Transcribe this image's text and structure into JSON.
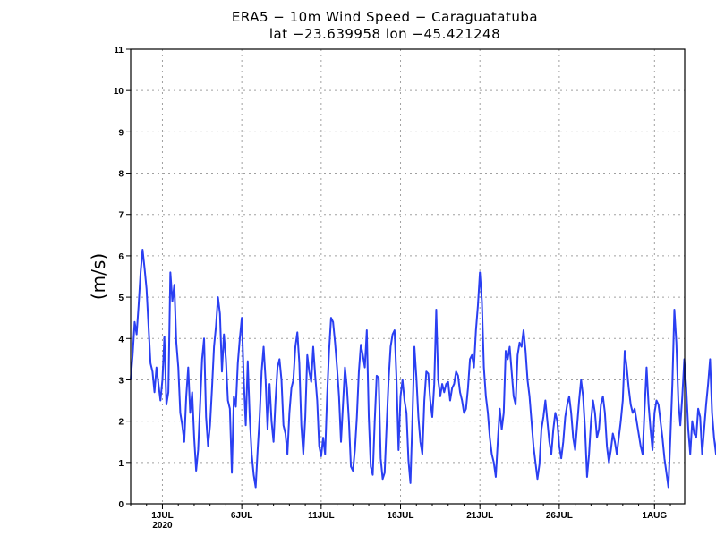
{
  "title_line1": "ERA5 − 10m Wind Speed − Caraguatatuba",
  "title_line2": "lat −23.639958 lon −45.421248",
  "colors": {
    "series": "#2a3ff2",
    "grid": "#a0a0a0",
    "axis": "#000000"
  },
  "chart_data": {
    "type": "line",
    "title": "ERA5 − 10m Wind Speed − Caraguatatuba",
    "subtitle": "lat −23.639958 lon −45.421248",
    "ylabel": "(m/s)",
    "xlabel": "",
    "ylim": [
      0,
      11
    ],
    "yticks": [
      0,
      1,
      2,
      3,
      4,
      5,
      6,
      7,
      8,
      9,
      10,
      11
    ],
    "xlim_days": [
      -2.0,
      32.9
    ],
    "xticks": [
      {
        "day": 0,
        "label": "1JUL",
        "sublabel": "2020"
      },
      {
        "day": 5,
        "label": "6JUL"
      },
      {
        "day": 10,
        "label": "11JUL"
      },
      {
        "day": 15,
        "label": "16JUL"
      },
      {
        "day": 20,
        "label": "21JUL"
      },
      {
        "day": 25,
        "label": "26JUL"
      },
      {
        "day": 31,
        "label": "1AUG"
      }
    ],
    "grid": true,
    "series": [
      {
        "name": "10m Wind Speed",
        "x_start_day": -2.0,
        "x_step_day": 0.125,
        "values": [
          3.0,
          3.6,
          4.4,
          4.1,
          4.8,
          5.6,
          6.15,
          5.7,
          5.2,
          4.3,
          3.4,
          3.2,
          2.7,
          3.3,
          2.9,
          2.5,
          3.0,
          4.05,
          2.4,
          2.7,
          5.6,
          4.9,
          5.3,
          3.9,
          3.3,
          2.2,
          1.9,
          1.5,
          2.6,
          3.3,
          2.2,
          2.7,
          1.6,
          0.8,
          1.3,
          2.4,
          3.5,
          4.0,
          2.1,
          1.4,
          1.9,
          2.8,
          3.8,
          4.3,
          5.0,
          4.6,
          3.2,
          4.1,
          3.5,
          2.5,
          2.3,
          0.75,
          2.6,
          2.35,
          3.4,
          4.0,
          4.5,
          3.0,
          1.9,
          3.45,
          2.1,
          1.2,
          0.7,
          0.4,
          1.3,
          2.1,
          3.2,
          3.8,
          3.0,
          1.8,
          2.9,
          2.0,
          1.5,
          2.5,
          3.3,
          3.5,
          3.0,
          1.9,
          1.7,
          1.2,
          2.2,
          2.8,
          3.0,
          3.8,
          4.15,
          3.4,
          1.9,
          1.2,
          2.1,
          3.6,
          3.2,
          2.95,
          3.8,
          3.1,
          2.5,
          1.4,
          1.15,
          1.6,
          1.2,
          2.6,
          3.7,
          4.5,
          4.4,
          3.9,
          3.3,
          2.6,
          1.5,
          2.4,
          3.3,
          2.8,
          2.0,
          0.9,
          0.8,
          1.3,
          2.1,
          3.2,
          3.85,
          3.6,
          3.3,
          4.2,
          2.1,
          0.9,
          0.7,
          2.0,
          3.1,
          3.05,
          1.1,
          0.6,
          0.75,
          1.9,
          3.0,
          3.8,
          4.1,
          4.2,
          3.0,
          1.3,
          2.6,
          3.0,
          2.5,
          2.2,
          1.05,
          0.5,
          2.05,
          3.8,
          3.05,
          2.1,
          1.5,
          1.2,
          2.5,
          3.2,
          3.15,
          2.5,
          2.1,
          2.9,
          4.7,
          3.0,
          2.6,
          2.9,
          2.7,
          2.9,
          2.95,
          2.5,
          2.8,
          2.9,
          3.2,
          3.1,
          2.7,
          2.5,
          2.2,
          2.3,
          2.8,
          3.5,
          3.6,
          3.3,
          4.2,
          4.8,
          5.6,
          4.9,
          3.3,
          2.6,
          2.2,
          1.6,
          1.2,
          1.0,
          0.65,
          1.5,
          2.3,
          1.8,
          2.2,
          3.7,
          3.5,
          3.8,
          3.2,
          2.6,
          2.4,
          3.6,
          3.9,
          3.8,
          4.2,
          3.7,
          3.0,
          2.6,
          2.0,
          1.4,
          1.0,
          0.6,
          0.95,
          1.8,
          2.1,
          2.5,
          2.0,
          1.5,
          1.2,
          1.8,
          2.2,
          2.0,
          1.4,
          1.1,
          1.5,
          2.1,
          2.4,
          2.6,
          2.2,
          1.6,
          1.3,
          1.9,
          2.5,
          3.0,
          2.6,
          1.8,
          0.65,
          1.2,
          2.0,
          2.5,
          2.2,
          1.6,
          1.8,
          2.4,
          2.6,
          2.2,
          1.4,
          1.0,
          1.3,
          1.7,
          1.5,
          1.2,
          1.6,
          2.0,
          2.5,
          3.7,
          3.3,
          2.8,
          2.4,
          2.2,
          2.3,
          2.0,
          1.7,
          1.4,
          1.2,
          2.3,
          3.3,
          2.4,
          1.8,
          1.3,
          2.2,
          2.5,
          2.4,
          2.0,
          1.6,
          1.1,
          0.75,
          0.4,
          1.6,
          2.9,
          4.7,
          3.9,
          2.5,
          1.9,
          2.6,
          3.5,
          2.8,
          1.8,
          1.2,
          2.0,
          1.7,
          1.6,
          2.3,
          2.1,
          1.2,
          1.8,
          2.4,
          2.9,
          3.5,
          2.2,
          1.6,
          1.2,
          2.0,
          2.5,
          2.4,
          1.8,
          0.5,
          1.6,
          2.1,
          2.6,
          2.0,
          2.3,
          2.2,
          1.8,
          2.2,
          5.5,
          4.3,
          3.3,
          2.4,
          2.2,
          3.0,
          4.3,
          3.5,
          2.9,
          1.8,
          2.4,
          3.3,
          4.3,
          4.9,
          4.3,
          3.4,
          2.6,
          2.4,
          4.3,
          5.3,
          5.0,
          4.8,
          5.5,
          6.4,
          6.1,
          5.4,
          4.9,
          5.3,
          6.35,
          6.0,
          6.45,
          5.8,
          4.9,
          4.3,
          4.2,
          3.6,
          3.2,
          3.4,
          2.5,
          2.7,
          3.2,
          2.8,
          3.3,
          2.6,
          2.3,
          1.7,
          2.2,
          2.9,
          3.3,
          4.5,
          4.3,
          3.2
        ]
      }
    ]
  }
}
